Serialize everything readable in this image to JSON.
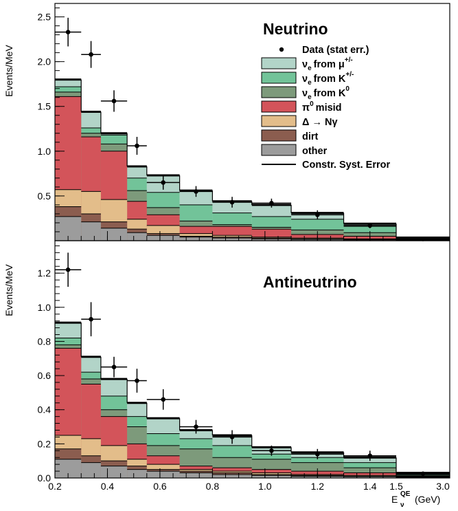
{
  "colors": {
    "nu_mu": "#b2d4c8",
    "nu_K": "#72c399",
    "nu_K0": "#7d9a7b",
    "pi0": "#d3545a",
    "delta": "#e3bd8a",
    "dirt": "#8b5d4f",
    "other": "#9c9c9c"
  },
  "chart_data": {
    "type": "stacked-histogram",
    "xlabel": "E",
    "xlabel_sup": "QE",
    "xlabel_sub": "ν",
    "xlabel_unit": "(GeV)",
    "x_tick_labels": [
      "0.2",
      "0.4",
      "0.6",
      "0.8",
      "1.0",
      "1.2",
      "1.4",
      "1.5",
      "3.0"
    ],
    "x_tick_values": [
      0.2,
      0.4,
      0.6,
      0.8,
      1.0,
      1.2,
      1.4,
      1.5,
      3.0
    ],
    "bin_edges": [
      0.2,
      0.3,
      0.375,
      0.475,
      0.55,
      0.675,
      0.8,
      0.95,
      1.1,
      1.3,
      1.5,
      3.0
    ],
    "legend": {
      "data": "Data (stat err.)",
      "nu_mu_a": "ν",
      "nu_mu_b": "e",
      "nu_mu_c": "from μ",
      "nu_mu_d": "+/-",
      "nu_K_a": "ν",
      "nu_K_b": "e",
      "nu_K_c": "from K",
      "nu_K_d": "+/-",
      "nu_K0_a": "ν",
      "nu_K0_b": "e",
      "nu_K0_c": "from K",
      "nu_K0_d": "0",
      "pi0_a": "π",
      "pi0_b": "0",
      "pi0_c": "misid",
      "delta_a": "Δ → N",
      "delta_b": "γ",
      "dirt": "dirt",
      "other": "other",
      "syst": "Constr. Syst. Error"
    },
    "panels": [
      {
        "title": "Neutrino",
        "ylabel": "Events/MeV",
        "ylim": [
          0,
          2.65
        ],
        "y_ticks": [
          0.5,
          1.0,
          1.5,
          2.0,
          2.5
        ],
        "y_tick_labels": [
          "0.5",
          "1.0",
          "1.5",
          "2.0",
          "2.5"
        ],
        "stack_cumulative": {
          "other": [
            0.27,
            0.21,
            0.14,
            0.09,
            0.06,
            0.04,
            0.03,
            0.02,
            0.015,
            0.01,
            0.005
          ],
          "dirt": [
            0.38,
            0.3,
            0.21,
            0.13,
            0.08,
            0.05,
            0.04,
            0.03,
            0.02,
            0.015,
            0.008
          ],
          "delta": [
            0.57,
            0.55,
            0.46,
            0.24,
            0.17,
            0.08,
            0.06,
            0.04,
            0.03,
            0.02,
            0.01
          ],
          "pi0": [
            1.61,
            1.16,
            1.0,
            0.44,
            0.29,
            0.16,
            0.16,
            0.13,
            0.07,
            0.05,
            0.015
          ],
          "nu_K0": [
            1.66,
            1.2,
            1.08,
            0.56,
            0.37,
            0.22,
            0.18,
            0.15,
            0.12,
            0.09,
            0.02
          ],
          "nu_K": [
            1.72,
            1.26,
            1.18,
            0.7,
            0.54,
            0.4,
            0.31,
            0.27,
            0.24,
            0.16,
            0.025
          ],
          "nu_mu": [
            1.8,
            1.44,
            1.2,
            0.83,
            0.73,
            0.56,
            0.44,
            0.4,
            0.31,
            0.19,
            0.035
          ]
        },
        "syst": [
          1.8,
          1.44,
          1.2,
          0.83,
          0.73,
          0.56,
          0.44,
          0.4,
          0.31,
          0.19,
          0.035
        ],
        "data": [
          2.33,
          2.08,
          1.56,
          1.06,
          0.65,
          0.55,
          0.43,
          0.42,
          0.29,
          0.17,
          0.02
        ],
        "data_err": [
          0.16,
          0.15,
          0.12,
          0.1,
          0.08,
          0.06,
          0.06,
          0.05,
          0.05,
          0.03,
          0.01
        ]
      },
      {
        "title": "Antineutrino",
        "ylabel": "Events/MeV",
        "ylim": [
          0,
          1.39
        ],
        "y_ticks": [
          0.0,
          0.2,
          0.4,
          0.6,
          0.8,
          1.0,
          1.2
        ],
        "y_tick_labels": [
          "0.0",
          "0.2",
          "0.4",
          "0.6",
          "0.8",
          "1.0",
          "1.2"
        ],
        "stack_cumulative": {
          "other": [
            0.11,
            0.09,
            0.07,
            0.05,
            0.04,
            0.03,
            0.02,
            0.015,
            0.01,
            0.008,
            0.004
          ],
          "dirt": [
            0.17,
            0.13,
            0.1,
            0.07,
            0.05,
            0.04,
            0.03,
            0.02,
            0.015,
            0.01,
            0.005
          ],
          "delta": [
            0.25,
            0.23,
            0.19,
            0.11,
            0.08,
            0.05,
            0.04,
            0.03,
            0.02,
            0.015,
            0.008
          ],
          "pi0": [
            0.76,
            0.55,
            0.36,
            0.2,
            0.13,
            0.07,
            0.06,
            0.05,
            0.04,
            0.03,
            0.01
          ],
          "nu_K0": [
            0.78,
            0.58,
            0.4,
            0.3,
            0.19,
            0.17,
            0.12,
            0.11,
            0.09,
            0.06,
            0.015
          ],
          "nu_K": [
            0.82,
            0.62,
            0.48,
            0.36,
            0.26,
            0.23,
            0.19,
            0.14,
            0.12,
            0.09,
            0.02
          ],
          "nu_mu": [
            0.91,
            0.71,
            0.58,
            0.44,
            0.35,
            0.28,
            0.25,
            0.18,
            0.15,
            0.12,
            0.03
          ]
        },
        "syst": [
          0.91,
          0.71,
          0.58,
          0.44,
          0.35,
          0.28,
          0.25,
          0.18,
          0.15,
          0.12,
          0.03
        ],
        "data": [
          1.22,
          0.93,
          0.65,
          0.57,
          0.46,
          0.3,
          0.24,
          0.16,
          0.14,
          0.13,
          0.025
        ],
        "data_err": [
          0.1,
          0.1,
          0.06,
          0.07,
          0.06,
          0.04,
          0.04,
          0.03,
          0.03,
          0.03,
          0.01
        ]
      }
    ]
  }
}
